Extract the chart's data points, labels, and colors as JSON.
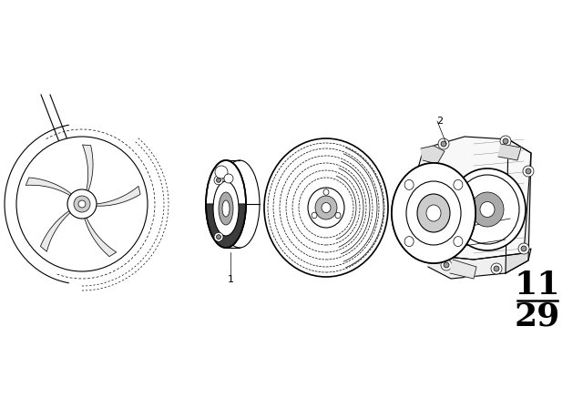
{
  "background_color": "#ffffff",
  "line_color": "#000000",
  "label1": "1",
  "label2": "2",
  "page_number_top": "11",
  "page_number_bottom": "29",
  "page_num_fontsize": 26,
  "label_fontsize": 8,
  "lw_thin": 0.5,
  "lw_med": 0.8,
  "lw_thick": 1.2
}
